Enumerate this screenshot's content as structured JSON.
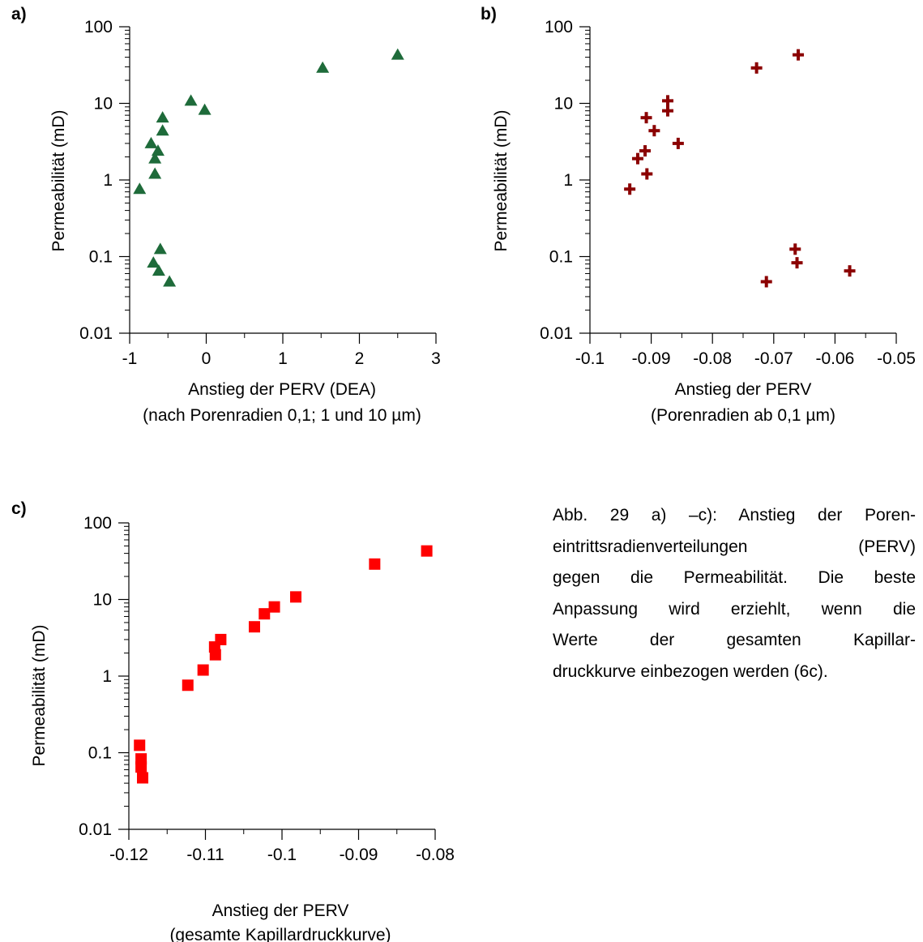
{
  "chart_data": [
    {
      "type": "scatter",
      "panel_label": "a)",
      "xlabel": "Anstieg der PERV (DEA)",
      "xlabel2": "(nach Porenradien 0,1; 1 und 10 µm)",
      "ylabel": "Permeabilität (mD)",
      "xlim": [
        -1,
        3
      ],
      "ylim": [
        0.01,
        100
      ],
      "yscale": "log",
      "x_ticks": [
        "-1",
        "0",
        "1",
        "2",
        "3"
      ],
      "y_ticks": [
        "100",
        "10",
        "1",
        "0.1",
        "0.01"
      ],
      "marker": "triangle",
      "color": "#1e6b3a",
      "series": [
        {
          "x": [
            2.5,
            1.52,
            -0.2,
            -0.02,
            -0.57,
            -0.57,
            -0.72,
            -0.63,
            -0.67,
            -0.67,
            -0.87,
            -0.6,
            -0.69,
            -0.62,
            -0.48
          ],
          "y": [
            43,
            29,
            10.8,
            8.2,
            6.5,
            4.4,
            3.0,
            2.4,
            1.9,
            1.2,
            0.76,
            0.125,
            0.083,
            0.065,
            0.047
          ]
        }
      ]
    },
    {
      "type": "scatter",
      "panel_label": "b)",
      "xlabel": "Anstieg der PERV",
      "xlabel2": "(Porenradien ab 0,1 µm)",
      "ylabel": "Permeabilität (mD)",
      "xlim": [
        -0.1,
        -0.05
      ],
      "ylim": [
        0.01,
        100
      ],
      "yscale": "log",
      "x_ticks": [
        "-0.1",
        "-0.09",
        "-0.08",
        "-0.07",
        "-0.06",
        "-0.05"
      ],
      "y_ticks": [
        "100",
        "10",
        "1",
        "0.1",
        "0.01"
      ],
      "marker": "cross",
      "color": "#8b0000",
      "series": [
        {
          "x": [
            -0.066,
            -0.0728,
            -0.0873,
            -0.0873,
            -0.0908,
            -0.0895,
            -0.0856,
            -0.091,
            -0.0922,
            -0.0907,
            -0.0935,
            -0.0665,
            -0.0662,
            -0.0576,
            -0.0712
          ],
          "y": [
            43,
            29,
            10.8,
            8.0,
            6.5,
            4.4,
            3.0,
            2.4,
            1.9,
            1.2,
            0.76,
            0.125,
            0.083,
            0.065,
            0.047
          ]
        }
      ]
    },
    {
      "type": "scatter",
      "panel_label": "c)",
      "xlabel": "Anstieg der PERV",
      "xlabel2": "(gesamte Kapillardruckkurve)",
      "ylabel": "Permeabilität (mD)",
      "xlim": [
        -0.12,
        -0.08
      ],
      "ylim": [
        0.01,
        100
      ],
      "yscale": "log",
      "x_ticks": [
        "-0.12",
        "-0.11",
        "-0.1",
        "-0.09",
        "-0.08"
      ],
      "y_ticks": [
        "100",
        "10",
        "1",
        "0.1",
        "0.01"
      ],
      "marker": "square",
      "color": "#ff0000",
      "series": [
        {
          "x": [
            -0.0811,
            -0.0879,
            -0.0982,
            -0.101,
            -0.1023,
            -0.1036,
            -0.108,
            -0.1088,
            -0.1087,
            -0.1103,
            -0.1123,
            -0.1186,
            -0.1184,
            -0.1184,
            -0.1182
          ],
          "y": [
            43,
            29,
            10.8,
            8.0,
            6.5,
            4.4,
            3.0,
            2.4,
            1.9,
            1.2,
            0.76,
            0.125,
            0.083,
            0.065,
            0.047
          ]
        }
      ]
    }
  ],
  "caption_lines": [
    "Abb. 29 a) –c): Anstieg der Poren-",
    "eintrittsradienverteilungen (PERV)",
    "gegen die Permeabilität. Die beste",
    "Anpassung wird erziehlt, wenn die",
    "Werte der gesamten Kapillar-",
    "druckkurve einbezogen werden (6c)."
  ]
}
